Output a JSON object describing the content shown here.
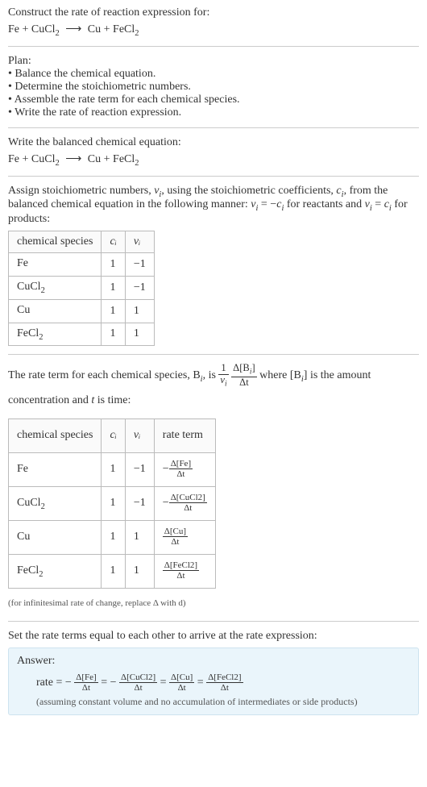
{
  "construct": {
    "title": "Construct the rate of reaction expression for:",
    "lhs1": "Fe + CuCl",
    "lhs1_sub": "2",
    "arrow": "⟶",
    "rhs1": "Cu + FeCl",
    "rhs1_sub": "2"
  },
  "plan": {
    "title": "Plan:",
    "items": [
      "Balance the chemical equation.",
      "Determine the stoichiometric numbers.",
      "Assemble the rate term for each chemical species.",
      "Write the rate of reaction expression."
    ]
  },
  "balanced": {
    "title": "Write the balanced chemical equation:",
    "lhs1": "Fe + CuCl",
    "lhs1_sub": "2",
    "arrow": "⟶",
    "rhs1": "Cu + FeCl",
    "rhs1_sub": "2"
  },
  "assign": {
    "text1": "Assign stoichiometric numbers, ",
    "nu_i": "ν",
    "nu_sub": "i",
    "text2": ", using the stoichiometric coefficients, ",
    "c_i": "c",
    "c_sub": "i",
    "text3": ", from the balanced chemical equation in the following manner: ",
    "eq1_lhs": "ν",
    "eq1_mid": " = −",
    "eq1_rhs": "c",
    "text4": " for reactants and ",
    "eq2_lhs": "ν",
    "eq2_mid": " = ",
    "eq2_rhs": "c",
    "text5": " for products:"
  },
  "table1": {
    "headers": [
      "chemical species",
      "cᵢ",
      "νᵢ"
    ],
    "rows": [
      {
        "species": "Fe",
        "sub": "",
        "c": "1",
        "nu": "−1"
      },
      {
        "species": "CuCl",
        "sub": "2",
        "c": "1",
        "nu": "−1"
      },
      {
        "species": "Cu",
        "sub": "",
        "c": "1",
        "nu": "1"
      },
      {
        "species": "FeCl",
        "sub": "2",
        "c": "1",
        "nu": "1"
      }
    ]
  },
  "rateterm": {
    "text1": "The rate term for each chemical species, B",
    "text2": ", is ",
    "text3": " where [B",
    "text4": "] is the amount concentration and ",
    "t": "t",
    "text5": " is time:",
    "one": "1",
    "nu_i": "ν",
    "i": "i",
    "delta_B": "Δ[B",
    "delta_t": "Δt",
    "close": "]"
  },
  "table2": {
    "headers": [
      "chemical species",
      "cᵢ",
      "νᵢ",
      "rate term"
    ],
    "rows": [
      {
        "species": "Fe",
        "sub": "",
        "c": "1",
        "nu": "−1",
        "neg": "−",
        "num": "Δ[Fe]",
        "den": "Δt"
      },
      {
        "species": "CuCl",
        "sub": "2",
        "c": "1",
        "nu": "−1",
        "neg": "−",
        "num": "Δ[CuCl2]",
        "den": "Δt"
      },
      {
        "species": "Cu",
        "sub": "",
        "c": "1",
        "nu": "1",
        "neg": "",
        "num": "Δ[Cu]",
        "den": "Δt"
      },
      {
        "species": "FeCl",
        "sub": "2",
        "c": "1",
        "nu": "1",
        "neg": "",
        "num": "Δ[FeCl2]",
        "den": "Δt"
      }
    ],
    "note": "(for infinitesimal rate of change, replace Δ with d)"
  },
  "set": {
    "title": "Set the rate terms equal to each other to arrive at the rate expression:"
  },
  "answer": {
    "label": "Answer:",
    "rate_prefix": "rate = −",
    "eq": " = ",
    "neg": "−",
    "f1_num": "Δ[Fe]",
    "f1_den": "Δt",
    "f2_num": "Δ[CuCl2]",
    "f2_den": "Δt",
    "f3_num": "Δ[Cu]",
    "f3_den": "Δt",
    "f4_num": "Δ[FeCl2]",
    "f4_den": "Δt",
    "assume": "(assuming constant volume and no accumulation of intermediates or side products)"
  },
  "style": {
    "answer_bg": "#eaf5fb",
    "answer_border": "#cde3ef"
  }
}
